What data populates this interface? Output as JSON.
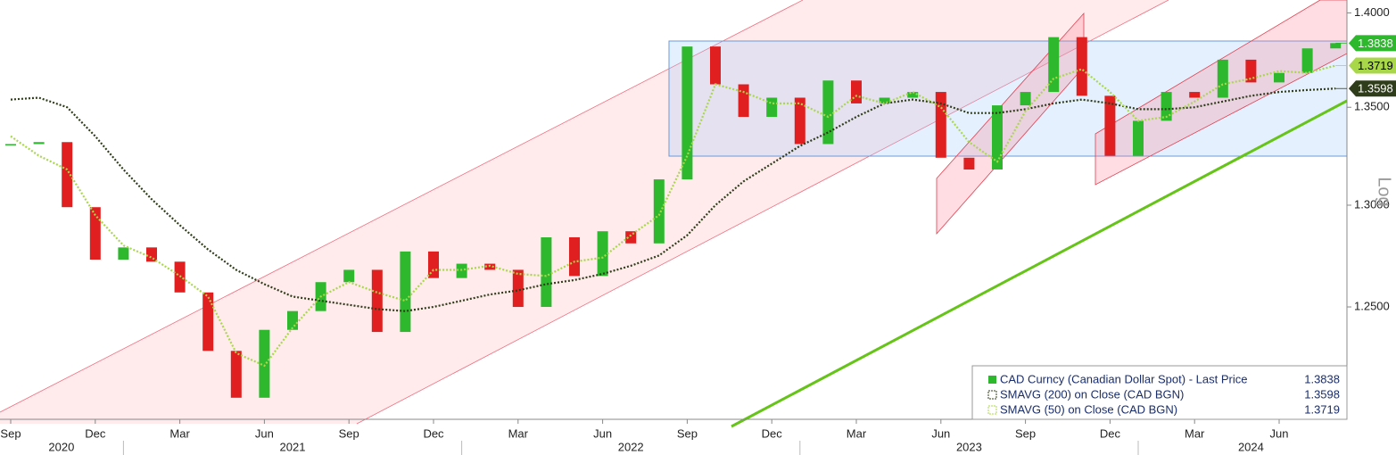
{
  "chart_data": {
    "type": "candlestick",
    "categories": [
      "Sep",
      null,
      null,
      "Dec",
      null,
      null,
      "Mar",
      null,
      null,
      "Jun",
      null,
      null,
      "Sep",
      null,
      null,
      "Dec",
      null,
      null,
      "Mar",
      null,
      null,
      "Jun",
      null,
      null,
      "Sep",
      null,
      null,
      "Dec",
      null,
      null,
      "Mar",
      null,
      null,
      "Jun",
      null,
      null,
      "Sep",
      null,
      null,
      "Dec",
      null,
      null,
      "Mar",
      null,
      null,
      "Jun",
      null,
      null
    ],
    "years": [
      "2020",
      "2021",
      "2022",
      "2023",
      "2024"
    ],
    "series": [
      {
        "name": "CAD Curncy (Canadian Dollar Spot) - Last Price",
        "color": "#2db82d",
        "down_color": "#e02020",
        "values": [
          1.331,
          1.332,
          1.299,
          1.273,
          1.279,
          1.272,
          1.257,
          1.229,
          1.207,
          1.239,
          1.248,
          1.262,
          1.268,
          1.238,
          1.277,
          1.264,
          1.271,
          1.268,
          1.25,
          1.284,
          1.265,
          1.287,
          1.281,
          1.313,
          1.382,
          1.362,
          1.345,
          1.355,
          1.331,
          1.364,
          1.352,
          1.355,
          1.358,
          1.324,
          1.318,
          1.351,
          1.358,
          1.387,
          1.356,
          1.325,
          1.343,
          1.358,
          1.355,
          1.375,
          1.363,
          1.368,
          1.381,
          1.3838
        ]
      },
      {
        "name": "SMAVG (200)  on Close (CAD BGN)",
        "color": "#2f3d1a",
        "values": [
          1.354,
          1.355,
          1.35,
          1.335,
          1.318,
          1.303,
          1.29,
          1.278,
          1.268,
          1.261,
          1.255,
          1.253,
          1.251,
          1.249,
          1.248,
          1.25,
          1.253,
          1.256,
          1.258,
          1.261,
          1.263,
          1.266,
          1.27,
          1.275,
          1.285,
          1.3,
          1.312,
          1.321,
          1.33,
          1.337,
          1.345,
          1.352,
          1.354,
          1.352,
          1.347,
          1.347,
          1.349,
          1.352,
          1.354,
          1.352,
          1.349,
          1.349,
          1.35,
          1.353,
          1.356,
          1.358,
          1.359,
          1.3598
        ]
      },
      {
        "name": "SMAVG (50)  on Close (CAD BGN)",
        "color": "#a8d84a",
        "values": [
          1.335,
          1.325,
          1.318,
          1.295,
          1.28,
          1.274,
          1.265,
          1.255,
          1.228,
          1.222,
          1.24,
          1.255,
          1.262,
          1.257,
          1.253,
          1.268,
          1.268,
          1.27,
          1.266,
          1.265,
          1.272,
          1.274,
          1.285,
          1.295,
          1.325,
          1.362,
          1.358,
          1.352,
          1.352,
          1.345,
          1.356,
          1.352,
          1.358,
          1.35,
          1.332,
          1.322,
          1.348,
          1.365,
          1.37,
          1.358,
          1.343,
          1.345,
          1.353,
          1.362,
          1.365,
          1.369,
          1.368,
          1.3719
        ]
      }
    ],
    "ylim": [
      1.197,
      1.407
    ],
    "log_y": true,
    "yticks": [
      {
        "value": 1.25,
        "label": "1.2500"
      },
      {
        "value": 1.3,
        "label": "1.3000"
      },
      {
        "value": 1.35,
        "label": "1.3500"
      },
      {
        "value": 1.4,
        "label": "1.4000"
      }
    ],
    "y_axis_label": "Log"
  }
}
